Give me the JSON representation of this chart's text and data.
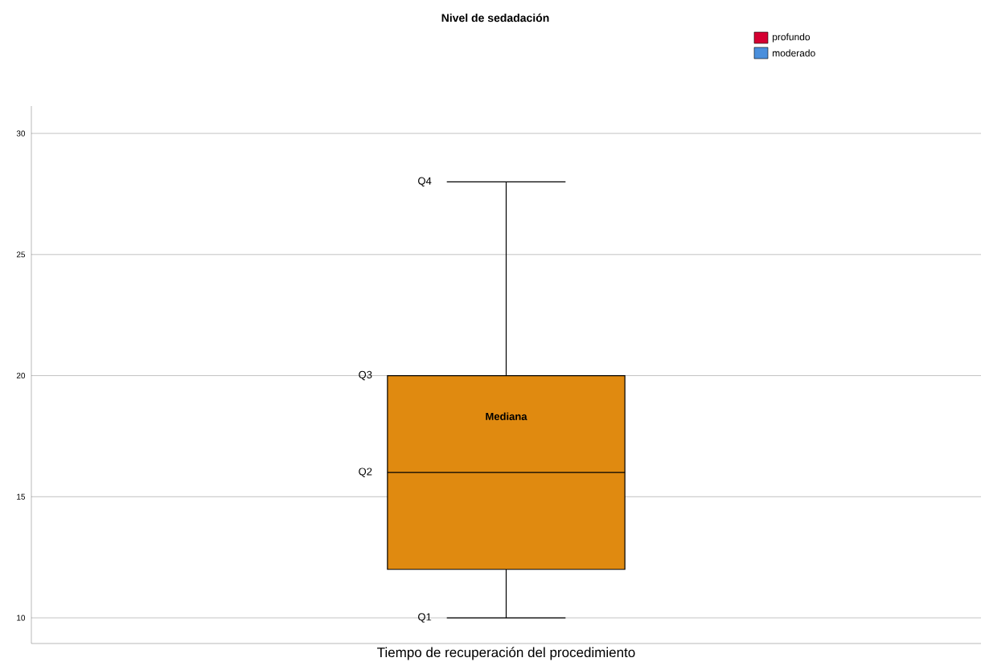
{
  "chart_data": {
    "type": "box",
    "title": "Nivel de sedadación",
    "xlabel": "Tiempo de recuperación del procedimiento",
    "categories": [
      null
    ],
    "series": [
      {
        "color": "#e08a10",
        "boxes": [
          {
            "low": 10,
            "q1": 12,
            "median": 16,
            "q3": 20,
            "high": 28
          }
        ]
      },
      {
        "name": "profundo",
        "color": "#d50032",
        "values": [
          null
        ]
      },
      {
        "name": "moderado",
        "color": "#4a8fdc",
        "values": [
          null
        ]
      }
    ],
    "ylim": [
      8.94,
      31.13
    ],
    "yticks": [
      10,
      15,
      20,
      25,
      30
    ],
    "grid": "y",
    "legend": "top right",
    "annotations": [
      "Q4",
      "Q3",
      "Mediana",
      "Q2",
      "Q1"
    ]
  }
}
